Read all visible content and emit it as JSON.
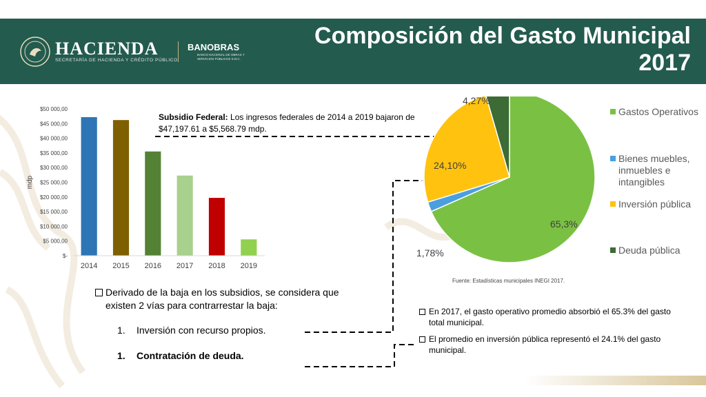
{
  "header": {
    "brand": "HACIENDA",
    "brand_sub": "SECRETARÍA DE HACIENDA Y CRÉDITO PÚBLICO",
    "partner": "BANOBRAS",
    "partner_sub": "BANCO NACIONAL DE OBRAS Y SERVICIOS PÚBLICOS S.N.C.",
    "title_line1": "Composición del Gasto Municipal",
    "title_line2": "2017",
    "bg_color": "#235b4e"
  },
  "subsidy_note": {
    "label": "Subsidio Federal:",
    "text": " Los ingresos federales de 2014 a 2019 bajaron de $47,197.61  a $5,568.79 mdp."
  },
  "left_text": {
    "bullet": "Derivado de la baja en los subsidios, se considera que existen 2 vías para contrarrestar la baja:",
    "item1_num": "1.",
    "item1": "Inversión con recurso propios.",
    "item2_num": "1.",
    "item2": "Contratación de deuda."
  },
  "right_text": {
    "bullet1": "En 2017, el gasto operativo promedio absorbió el 65.3% del gasto total municipal.",
    "bullet2": "El promedio en inversión pública representó el 24.1% del gasto municipal."
  },
  "source": "Fuente: Estadísticas municipales INEGI 2017.",
  "chart_data": [
    {
      "type": "bar",
      "ylabel": "mdp",
      "categories": [
        "2014",
        "2015",
        "2016",
        "2017",
        "2018",
        "2019"
      ],
      "values": [
        47197.61,
        46200,
        35500,
        27300,
        19700,
        5568.79
      ],
      "colors": [
        "#2e75b6",
        "#7f6000",
        "#548235",
        "#a9d18e",
        "#c00000",
        "#92d050"
      ],
      "ylim": [
        0,
        50000
      ],
      "yticks": [
        0,
        5000,
        10000,
        15000,
        20000,
        25000,
        30000,
        35000,
        40000,
        45000,
        50000
      ],
      "ytick_labels": [
        "$-",
        "$5 000,00",
        "$10 000,00",
        "$15 000,00",
        "$20 000,00",
        "$25 000,00",
        "$30 000,00",
        "$35 000,00",
        "$40 000,00",
        "$45 000,00",
        "$50 000,00"
      ],
      "grid": false
    },
    {
      "type": "pie",
      "labels": [
        "Gastos Operativos",
        "Bienes muebles, inmuebles e intangibles",
        "Inversión pública",
        "Deuda pública"
      ],
      "values": [
        65.3,
        1.78,
        24.1,
        4.27
      ],
      "data_labels": [
        "65,3%",
        "1,78%",
        "24,10%",
        "4,27%"
      ],
      "colors": [
        "#7ac143",
        "#4a9fe0",
        "#ffc20e",
        "#3d6b35"
      ],
      "legend_position": "right"
    }
  ]
}
